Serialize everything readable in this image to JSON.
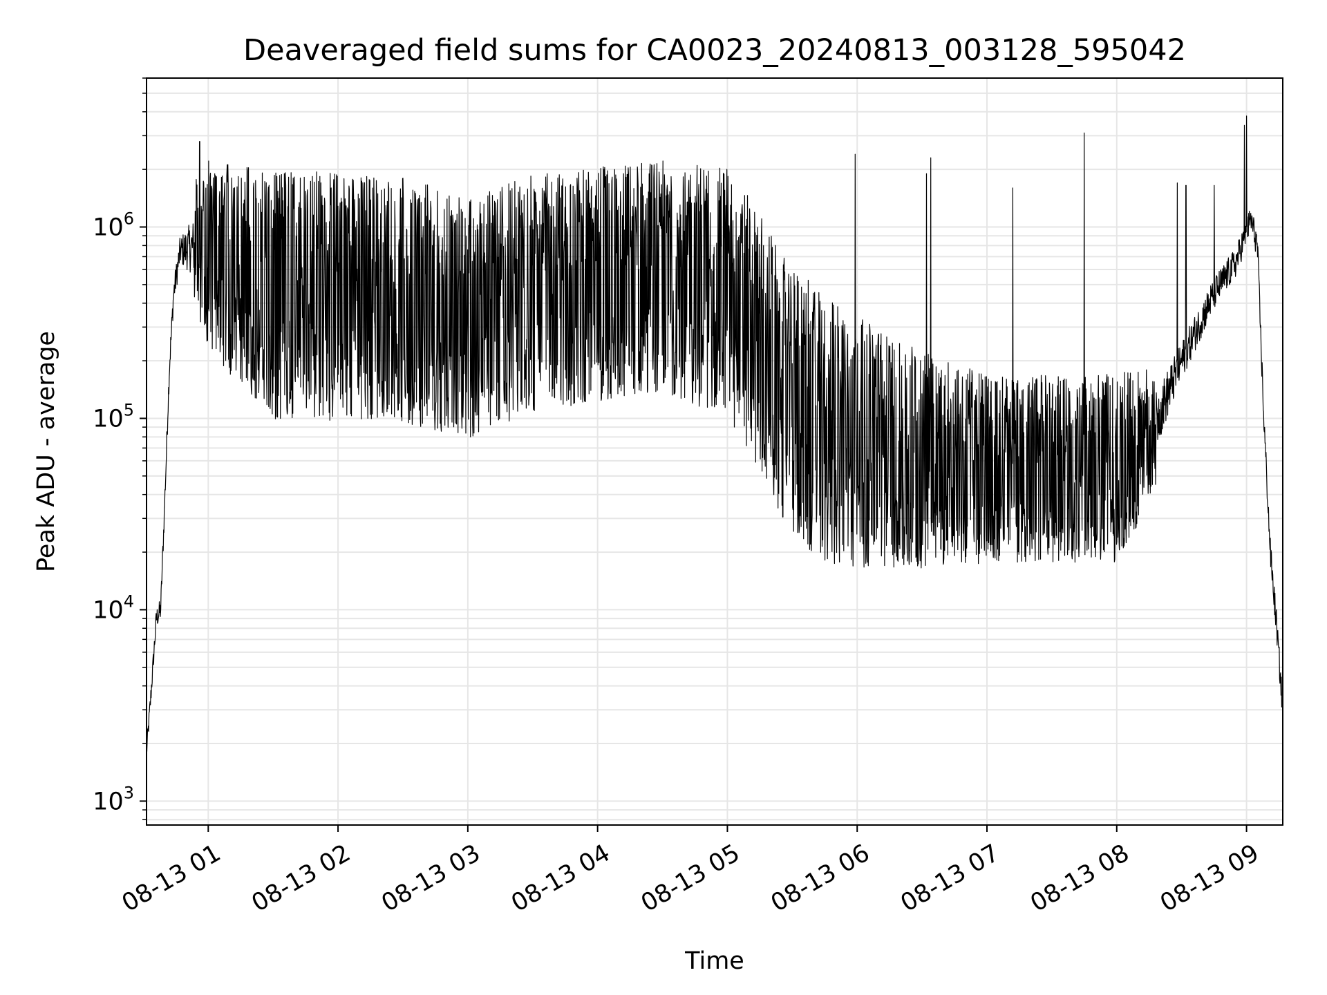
{
  "chart_data": {
    "type": "line",
    "title": "Deaveraged field sums for CA0023_20240813_003128_595042",
    "xlabel": "Time",
    "ylabel": "Peak ADU - average",
    "y_scale": "log",
    "ylim": [
      750,
      6000000
    ],
    "xlim": [
      "08-13 00:31:28",
      "08-13 09:16:45"
    ],
    "grid": true,
    "line_color": "#000000",
    "x_ticks": [
      {
        "time": "08-13 01:00",
        "label": "08-13 01"
      },
      {
        "time": "08-13 02:00",
        "label": "08-13 02"
      },
      {
        "time": "08-13 03:00",
        "label": "08-13 03"
      },
      {
        "time": "08-13 04:00",
        "label": "08-13 04"
      },
      {
        "time": "08-13 05:00",
        "label": "08-13 05"
      },
      {
        "time": "08-13 06:00",
        "label": "08-13 06"
      },
      {
        "time": "08-13 07:00",
        "label": "08-13 07"
      },
      {
        "time": "08-13 08:00",
        "label": "08-13 08"
      },
      {
        "time": "08-13 09:00",
        "label": "08-13 09"
      }
    ],
    "y_ticks": [
      {
        "value": 1000,
        "base": "10",
        "exp": "3"
      },
      {
        "value": 10000,
        "base": "10",
        "exp": "4"
      },
      {
        "value": 100000,
        "base": "10",
        "exp": "5"
      },
      {
        "value": 1000000,
        "base": "10",
        "exp": "6"
      }
    ],
    "series": [
      {
        "baseline": [
          [
            "08-13 00:31:28",
            1800
          ],
          [
            "08-13 00:33",
            3000
          ],
          [
            "08-13 00:36",
            9000
          ],
          [
            "08-13 00:38",
            10000
          ],
          [
            "08-13 00:40",
            40000
          ],
          [
            "08-13 00:42",
            180000
          ],
          [
            "08-13 00:44",
            450000
          ],
          [
            "08-13 00:47",
            750000
          ],
          [
            "08-13 00:55",
            800000
          ],
          [
            "08-13 01:05",
            650000
          ],
          [
            "08-13 01:30",
            450000
          ],
          [
            "08-13 02:30",
            420000
          ],
          [
            "08-13 03:00",
            330000
          ],
          [
            "08-13 03:30",
            450000
          ],
          [
            "08-13 04:00",
            500000
          ],
          [
            "08-13 04:30",
            550000
          ],
          [
            "08-13 05:00",
            450000
          ],
          [
            "08-13 05:15",
            250000
          ],
          [
            "08-13 05:30",
            120000
          ],
          [
            "08-13 05:45",
            90000
          ],
          [
            "08-13 06:00",
            75000
          ],
          [
            "08-13 06:30",
            60000
          ],
          [
            "08-13 07:00",
            55000
          ],
          [
            "08-13 07:30",
            55000
          ],
          [
            "08-13 08:00",
            55000
          ],
          [
            "08-13 08:15",
            80000
          ],
          [
            "08-13 08:30",
            200000
          ],
          [
            "08-13 08:45",
            450000
          ],
          [
            "08-13 08:55",
            650000
          ],
          [
            "08-13 09:02",
            1100000
          ],
          [
            "08-13 09:05",
            800000
          ],
          [
            "08-13 09:08",
            100000
          ],
          [
            "08-13 09:11",
            20000
          ],
          [
            "08-13 09:14",
            8000
          ],
          [
            "08-13 09:16:45",
            3000
          ]
        ],
        "spread": [
          [
            "08-13 00:31:28",
            0.1
          ],
          [
            "08-13 00:47",
            0.15
          ],
          [
            "08-13 01:00",
            0.45
          ],
          [
            "08-13 01:30",
            0.6
          ],
          [
            "08-13 04:30",
            0.55
          ],
          [
            "08-13 05:00",
            0.6
          ],
          [
            "08-13 05:45",
            0.65
          ],
          [
            "08-13 06:15",
            0.55
          ],
          [
            "08-13 07:00",
            0.45
          ],
          [
            "08-13 08:00",
            0.45
          ],
          [
            "08-13 08:30",
            0.2
          ],
          [
            "08-13 09:00",
            0.15
          ],
          [
            "08-13 09:16:45",
            0.15
          ]
        ],
        "peaks": [
          [
            "08-13 00:56",
            2800000
          ],
          [
            "08-13 05:59",
            2400000
          ],
          [
            "08-13 06:34",
            2300000
          ],
          [
            "08-13 06:32",
            1900000
          ],
          [
            "08-13 07:45",
            3100000
          ],
          [
            "08-13 07:12",
            1600000
          ],
          [
            "08-13 08:28",
            1700000
          ],
          [
            "08-13 08:32",
            1650000
          ],
          [
            "08-13 08:45",
            1650000
          ],
          [
            "08-13 09:00",
            3800000
          ],
          [
            "08-13 08:59",
            3400000
          ],
          [
            "08-13 04:46",
            2100000
          ]
        ]
      }
    ]
  }
}
